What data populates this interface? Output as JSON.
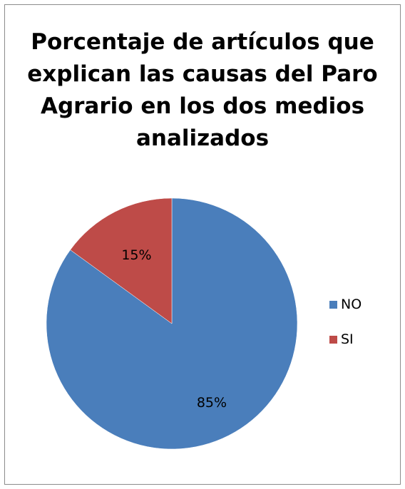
{
  "chart_data": {
    "type": "pie",
    "title": "Porcentaje de artículos que\nexplican las causas del Paro\nAgrario en los dos medios\nanalizados",
    "categories": [
      "NO",
      "SI"
    ],
    "values": [
      85,
      15
    ],
    "data_labels": [
      "85%",
      "15%"
    ],
    "colors": [
      "#4a7ebb",
      "#be4b48"
    ],
    "legend": "right",
    "start_angle_deg": 0,
    "direction": "clockwise"
  }
}
